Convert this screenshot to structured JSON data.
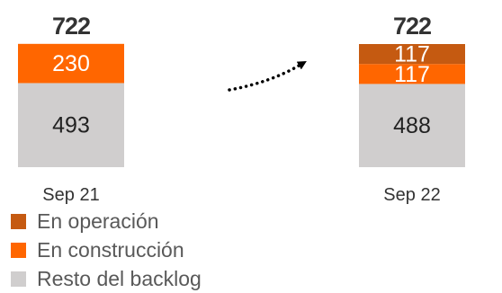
{
  "chart_data": {
    "type": "bar",
    "stacked": true,
    "categories": [
      "Sep 21",
      "Sep 22"
    ],
    "totals": [
      "722",
      "722"
    ],
    "series": [
      {
        "name": "Resto del backlog",
        "color": "#d0cece",
        "label_color": "#222222",
        "values": [
          493,
          488
        ],
        "labels": [
          "493",
          "488"
        ]
      },
      {
        "name": "En construcción",
        "color": "#ff6600",
        "label_color": "#ffffff",
        "values": [
          230,
          117
        ],
        "labels": [
          "230",
          "117"
        ]
      },
      {
        "name": "En operación",
        "color": "#c55a11",
        "label_color": "#ffffff",
        "values": [
          0,
          117
        ],
        "labels": [
          "",
          "117"
        ]
      }
    ],
    "legend": {
      "placement": "bottom-left",
      "order": [
        "En operación",
        "En construcción",
        "Resto del backlog"
      ]
    },
    "annotation": "dotted arrow from Sep 21 to Sep 22",
    "grid": false,
    "axes_visible": false
  }
}
